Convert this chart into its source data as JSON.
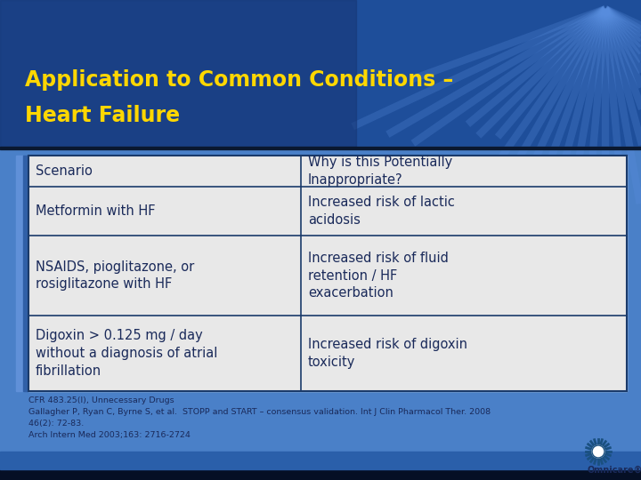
{
  "title_line1": "Application to Common Conditions –",
  "title_line2": "Heart Failure",
  "title_color": "#FFD700",
  "table_border_color": "#1a3a6a",
  "cell_text_color": "#1a2a5a",
  "col1_header": "Scenario",
  "col2_header": "Why is this Potentially\nInappropriate?",
  "rows": [
    [
      "Metformin with HF",
      "Increased risk of lactic\nacidosis"
    ],
    [
      "NSAIDS, pioglitazone, or\nrosiglitazone with HF",
      "Increased risk of fluid\nretention / HF\nexacerbation"
    ],
    [
      "Digoxin > 0.125 mg / day\nwithout a diagnosis of atrial\nfibrillation",
      "Increased risk of digoxin\ntoxicity"
    ]
  ],
  "footnotes": [
    "CFR 483.25(l), Unnecessary Drugs",
    "Gallagher P, Ryan C, Byrne S, et al.  STOPP and START – consensus validation. Int J Clin Pharmacol Ther. 2008",
    "46(2): 72-83.",
    "Arch Intern Med 2003;163: 2716-2724"
  ],
  "bg_main": "#2a5faa",
  "bg_title_dark": "#1a4080",
  "bg_body_light": "#5080c0",
  "table_bg": "#e8e8e8",
  "left_strip_color": "#4070bb",
  "sunburst_color": "#4a80d0",
  "bottom_bar_color": "#0a1a40",
  "omnicare_color": "#1a5080",
  "fig_width": 7.2,
  "fig_height": 5.4,
  "dpi": 100
}
